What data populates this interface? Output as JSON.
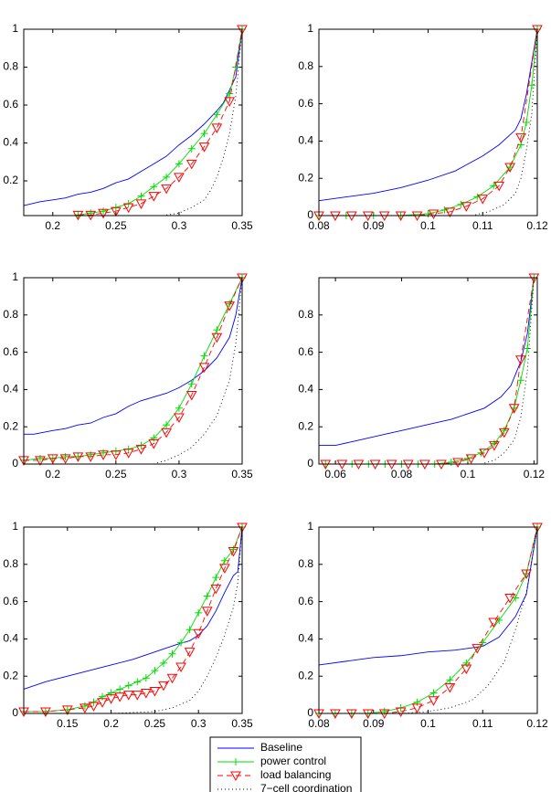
{
  "chart_data": [
    {
      "type": "line",
      "xlim": [
        0.177,
        0.35
      ],
      "ylim": [
        0.017,
        1
      ],
      "xticks": [
        0.2,
        0.25,
        0.3,
        0.35
      ],
      "yticks": [
        0.2,
        0.4,
        0.6,
        0.8,
        1
      ],
      "series": [
        {
          "name": "Baseline",
          "color": "#0000ff",
          "linestyle": "solid",
          "marker": "none",
          "x": [
            0.177,
            0.19,
            0.2,
            0.21,
            0.22,
            0.23,
            0.24,
            0.25,
            0.26,
            0.27,
            0.28,
            0.29,
            0.3,
            0.31,
            0.32,
            0.33,
            0.335,
            0.34,
            0.345,
            0.35
          ],
          "values": [
            0.07,
            0.09,
            0.1,
            0.11,
            0.13,
            0.14,
            0.16,
            0.19,
            0.21,
            0.25,
            0.29,
            0.33,
            0.39,
            0.44,
            0.5,
            0.57,
            0.61,
            0.68,
            0.75,
            1
          ]
        },
        {
          "name": "power control",
          "color": "#00dd00",
          "linestyle": "solid",
          "marker": "plus",
          "x": [
            0.22,
            0.23,
            0.24,
            0.25,
            0.26,
            0.27,
            0.28,
            0.29,
            0.3,
            0.31,
            0.32,
            0.33,
            0.34,
            0.345,
            0.35
          ],
          "values": [
            0.02,
            0.03,
            0.04,
            0.06,
            0.08,
            0.12,
            0.17,
            0.22,
            0.29,
            0.37,
            0.45,
            0.55,
            0.66,
            0.8,
            1
          ]
        },
        {
          "name": "load balancing",
          "color": "#ff0000",
          "linestyle": "dashed",
          "marker": "triangle",
          "x": [
            0.22,
            0.23,
            0.24,
            0.25,
            0.26,
            0.27,
            0.28,
            0.29,
            0.3,
            0.31,
            0.32,
            0.33,
            0.34,
            0.35
          ],
          "values": [
            0.02,
            0.02,
            0.03,
            0.04,
            0.06,
            0.08,
            0.12,
            0.16,
            0.22,
            0.29,
            0.38,
            0.48,
            0.62,
            1
          ]
        },
        {
          "name": "7−cell coordination",
          "color": "#000000",
          "linestyle": "dotted",
          "marker": "none",
          "x": [
            0.29,
            0.3,
            0.31,
            0.32,
            0.325,
            0.33,
            0.335,
            0.34,
            0.345,
            0.35
          ],
          "values": [
            0.02,
            0.03,
            0.06,
            0.1,
            0.15,
            0.22,
            0.32,
            0.45,
            0.65,
            1
          ]
        }
      ]
    },
    {
      "type": "line",
      "xlim": [
        0.08,
        0.12
      ],
      "ylim": [
        0,
        1
      ],
      "xticks": [
        0.08,
        0.09,
        0.1,
        0.11,
        0.12
      ],
      "yticks": [
        0,
        0.2,
        0.4,
        0.6,
        0.8,
        1
      ],
      "series": [
        {
          "name": "Baseline",
          "color": "#0000ff",
          "linestyle": "solid",
          "marker": "none",
          "x": [
            0.08,
            0.085,
            0.09,
            0.095,
            0.1,
            0.105,
            0.11,
            0.113,
            0.116,
            0.117,
            0.118,
            0.12
          ],
          "values": [
            0.08,
            0.1,
            0.12,
            0.15,
            0.19,
            0.24,
            0.32,
            0.38,
            0.46,
            0.52,
            0.65,
            1
          ]
        },
        {
          "name": "power control",
          "color": "#00dd00",
          "linestyle": "solid",
          "marker": "plus",
          "x": [
            0.08,
            0.085,
            0.09,
            0.095,
            0.1,
            0.103,
            0.106,
            0.109,
            0.112,
            0.115,
            0.117,
            0.118,
            0.119,
            0.12
          ],
          "values": [
            0,
            0,
            0,
            0,
            0.01,
            0.03,
            0.06,
            0.1,
            0.16,
            0.26,
            0.38,
            0.5,
            0.7,
            1
          ]
        },
        {
          "name": "load balancing",
          "color": "#ff0000",
          "linestyle": "dashed",
          "marker": "triangle",
          "x": [
            0.08,
            0.083,
            0.086,
            0.089,
            0.092,
            0.095,
            0.098,
            0.101,
            0.104,
            0.107,
            0.11,
            0.113,
            0.115,
            0.117,
            0.12
          ],
          "values": [
            0,
            0,
            0,
            0,
            0,
            0,
            0,
            0.01,
            0.02,
            0.05,
            0.09,
            0.16,
            0.26,
            0.42,
            1
          ]
        },
        {
          "name": "7−cell coordination",
          "color": "#000000",
          "linestyle": "dotted",
          "marker": "none",
          "x": [
            0.108,
            0.111,
            0.114,
            0.116,
            0.117,
            0.118,
            0.119,
            0.12
          ],
          "values": [
            0,
            0.02,
            0.06,
            0.12,
            0.2,
            0.35,
            0.55,
            1
          ]
        }
      ]
    },
    {
      "type": "line",
      "xlim": [
        0.177,
        0.35
      ],
      "ylim": [
        0,
        1
      ],
      "xticks": [
        0.2,
        0.25,
        0.3,
        0.35
      ],
      "yticks": [
        0,
        0.2,
        0.4,
        0.6,
        0.8,
        1
      ],
      "series": [
        {
          "name": "Baseline",
          "color": "#0000ff",
          "linestyle": "solid",
          "marker": "none",
          "x": [
            0.177,
            0.185,
            0.2,
            0.21,
            0.22,
            0.23,
            0.24,
            0.25,
            0.26,
            0.27,
            0.28,
            0.29,
            0.3,
            0.31,
            0.32,
            0.33,
            0.34,
            0.345,
            0.35
          ],
          "values": [
            0.16,
            0.16,
            0.18,
            0.19,
            0.21,
            0.22,
            0.25,
            0.27,
            0.31,
            0.34,
            0.36,
            0.38,
            0.41,
            0.45,
            0.5,
            0.57,
            0.68,
            0.8,
            1
          ]
        },
        {
          "name": "power control",
          "color": "#00dd00",
          "linestyle": "solid",
          "marker": "plus",
          "x": [
            0.177,
            0.19,
            0.2,
            0.21,
            0.22,
            0.23,
            0.24,
            0.25,
            0.26,
            0.27,
            0.28,
            0.29,
            0.3,
            0.31,
            0.32,
            0.33,
            0.34,
            0.35
          ],
          "values": [
            0.02,
            0.03,
            0.03,
            0.04,
            0.04,
            0.05,
            0.06,
            0.07,
            0.08,
            0.1,
            0.14,
            0.21,
            0.3,
            0.43,
            0.58,
            0.72,
            0.86,
            1
          ]
        },
        {
          "name": "load balancing",
          "color": "#ff0000",
          "linestyle": "dashed",
          "marker": "triangle",
          "x": [
            0.177,
            0.19,
            0.2,
            0.21,
            0.22,
            0.23,
            0.24,
            0.25,
            0.26,
            0.27,
            0.28,
            0.29,
            0.3,
            0.31,
            0.32,
            0.33,
            0.34,
            0.35
          ],
          "values": [
            0.02,
            0.02,
            0.03,
            0.03,
            0.04,
            0.04,
            0.05,
            0.05,
            0.06,
            0.08,
            0.11,
            0.17,
            0.25,
            0.37,
            0.52,
            0.68,
            0.85,
            1
          ]
        },
        {
          "name": "7−cell coordination",
          "color": "#000000",
          "linestyle": "dotted",
          "marker": "none",
          "x": [
            0.28,
            0.29,
            0.3,
            0.31,
            0.32,
            0.33,
            0.34,
            0.345,
            0.35
          ],
          "values": [
            0,
            0.02,
            0.05,
            0.09,
            0.16,
            0.26,
            0.45,
            0.65,
            1
          ]
        }
      ]
    },
    {
      "type": "line",
      "xlim": [
        0.055,
        0.121
      ],
      "ylim": [
        0,
        1
      ],
      "xticks": [
        0.06,
        0.08,
        0.1,
        0.12
      ],
      "yticks": [
        0,
        0.2,
        0.4,
        0.6,
        0.8
      ],
      "series": [
        {
          "name": "Baseline",
          "color": "#0000ff",
          "linestyle": "solid",
          "marker": "none",
          "x": [
            0.055,
            0.06,
            0.065,
            0.07,
            0.075,
            0.08,
            0.085,
            0.09,
            0.095,
            0.1,
            0.105,
            0.11,
            0.113,
            0.116,
            0.118,
            0.12
          ],
          "values": [
            0.1,
            0.1,
            0.12,
            0.14,
            0.16,
            0.18,
            0.2,
            0.22,
            0.24,
            0.27,
            0.3,
            0.36,
            0.42,
            0.55,
            0.7,
            1
          ]
        },
        {
          "name": "power control",
          "color": "#00dd00",
          "linestyle": "solid",
          "marker": "plus",
          "x": [
            0.057,
            0.065,
            0.07,
            0.075,
            0.08,
            0.085,
            0.09,
            0.095,
            0.1,
            0.104,
            0.108,
            0.111,
            0.114,
            0.116,
            0.118,
            0.12
          ],
          "values": [
            0,
            0,
            0,
            0,
            0,
            0,
            0,
            0.01,
            0.03,
            0.06,
            0.11,
            0.18,
            0.3,
            0.45,
            0.62,
            1
          ]
        },
        {
          "name": "load balancing",
          "color": "#ff0000",
          "linestyle": "dashed",
          "marker": "triangle",
          "x": [
            0.057,
            0.062,
            0.067,
            0.072,
            0.077,
            0.082,
            0.087,
            0.092,
            0.097,
            0.101,
            0.105,
            0.108,
            0.111,
            0.114,
            0.116,
            0.12
          ],
          "values": [
            0,
            0,
            0,
            0,
            0,
            0,
            0,
            0,
            0.01,
            0.03,
            0.06,
            0.1,
            0.17,
            0.3,
            0.56,
            1
          ]
        },
        {
          "name": "7−cell coordination",
          "color": "#000000",
          "linestyle": "dotted",
          "marker": "none",
          "x": [
            0.104,
            0.108,
            0.111,
            0.114,
            0.116,
            0.118,
            0.12
          ],
          "values": [
            0,
            0.02,
            0.06,
            0.13,
            0.25,
            0.5,
            1
          ]
        }
      ]
    },
    {
      "type": "line",
      "xlim": [
        0.1,
        0.35
      ],
      "ylim": [
        0,
        1
      ],
      "xticks": [
        0.15,
        0.2,
        0.25,
        0.3,
        0.35
      ],
      "yticks": [
        0,
        0.2,
        0.4,
        0.6,
        0.8,
        1
      ],
      "series": [
        {
          "name": "Baseline",
          "color": "#0000ff",
          "linestyle": "solid",
          "marker": "none",
          "x": [
            0.1,
            0.125,
            0.15,
            0.175,
            0.2,
            0.225,
            0.25,
            0.275,
            0.29,
            0.3,
            0.31,
            0.32,
            0.33,
            0.34,
            0.345,
            0.35
          ],
          "values": [
            0.13,
            0.17,
            0.2,
            0.23,
            0.26,
            0.29,
            0.33,
            0.37,
            0.39,
            0.42,
            0.47,
            0.55,
            0.65,
            0.74,
            0.76,
            1
          ]
        },
        {
          "name": "power control",
          "color": "#00dd00",
          "linestyle": "solid",
          "marker": "plus",
          "x": [
            0.1,
            0.125,
            0.15,
            0.17,
            0.18,
            0.19,
            0.2,
            0.21,
            0.22,
            0.23,
            0.24,
            0.25,
            0.26,
            0.27,
            0.28,
            0.29,
            0.3,
            0.31,
            0.32,
            0.33,
            0.34,
            0.35
          ],
          "values": [
            0.01,
            0.01,
            0.02,
            0.04,
            0.06,
            0.09,
            0.11,
            0.13,
            0.15,
            0.17,
            0.19,
            0.23,
            0.27,
            0.32,
            0.38,
            0.45,
            0.54,
            0.63,
            0.73,
            0.82,
            0.88,
            1
          ]
        },
        {
          "name": "load balancing",
          "color": "#ff0000",
          "linestyle": "dashed",
          "marker": "triangle",
          "x": [
            0.1,
            0.125,
            0.15,
            0.17,
            0.18,
            0.19,
            0.2,
            0.21,
            0.22,
            0.23,
            0.24,
            0.25,
            0.26,
            0.27,
            0.28,
            0.29,
            0.3,
            0.31,
            0.32,
            0.33,
            0.34,
            0.35
          ],
          "values": [
            0.01,
            0.01,
            0.02,
            0.03,
            0.04,
            0.06,
            0.08,
            0.09,
            0.1,
            0.1,
            0.11,
            0.12,
            0.15,
            0.19,
            0.25,
            0.33,
            0.43,
            0.55,
            0.67,
            0.78,
            0.87,
            1
          ]
        },
        {
          "name": "7−cell coordination",
          "color": "#000000",
          "linestyle": "dotted",
          "marker": "none",
          "x": [
            0.2,
            0.25,
            0.27,
            0.29,
            0.3,
            0.31,
            0.32,
            0.33,
            0.34,
            0.345,
            0.35
          ],
          "values": [
            0,
            0.01,
            0.03,
            0.07,
            0.12,
            0.2,
            0.3,
            0.42,
            0.57,
            0.7,
            1
          ]
        }
      ]
    },
    {
      "type": "line",
      "xlim": [
        0.08,
        0.12
      ],
      "ylim": [
        0,
        1
      ],
      "xticks": [
        0.08,
        0.09,
        0.1,
        0.11,
        0.12
      ],
      "yticks": [
        0,
        0.2,
        0.4,
        0.6,
        0.8,
        1
      ],
      "series": [
        {
          "name": "Baseline",
          "color": "#0000ff",
          "linestyle": "solid",
          "marker": "none",
          "x": [
            0.08,
            0.085,
            0.09,
            0.095,
            0.1,
            0.105,
            0.11,
            0.113,
            0.116,
            0.118,
            0.12
          ],
          "values": [
            0.26,
            0.28,
            0.3,
            0.31,
            0.33,
            0.34,
            0.36,
            0.41,
            0.52,
            0.64,
            1
          ]
        },
        {
          "name": "power control",
          "color": "#00dd00",
          "linestyle": "solid",
          "marker": "plus",
          "x": [
            0.08,
            0.083,
            0.086,
            0.089,
            0.092,
            0.095,
            0.098,
            0.101,
            0.104,
            0.107,
            0.11,
            0.113,
            0.116,
            0.118,
            0.12
          ],
          "values": [
            0,
            0,
            0,
            0,
            0.01,
            0.03,
            0.06,
            0.11,
            0.18,
            0.27,
            0.38,
            0.5,
            0.62,
            0.75,
            1
          ]
        },
        {
          "name": "load balancing",
          "color": "#ff0000",
          "linestyle": "dashed",
          "marker": "triangle",
          "x": [
            0.08,
            0.083,
            0.086,
            0.089,
            0.092,
            0.095,
            0.098,
            0.101,
            0.104,
            0.107,
            0.109,
            0.112,
            0.115,
            0.118,
            0.12
          ],
          "values": [
            0,
            0,
            0,
            0,
            0,
            0.01,
            0.03,
            0.07,
            0.14,
            0.24,
            0.35,
            0.49,
            0.62,
            0.75,
            1
          ]
        },
        {
          "name": "7−cell coordination",
          "color": "#000000",
          "linestyle": "dotted",
          "marker": "none",
          "x": [
            0.095,
            0.1,
            0.104,
            0.108,
            0.111,
            0.114,
            0.116,
            0.118,
            0.12
          ],
          "values": [
            0,
            0.01,
            0.03,
            0.07,
            0.15,
            0.28,
            0.45,
            0.65,
            1
          ]
        }
      ]
    }
  ]
}
